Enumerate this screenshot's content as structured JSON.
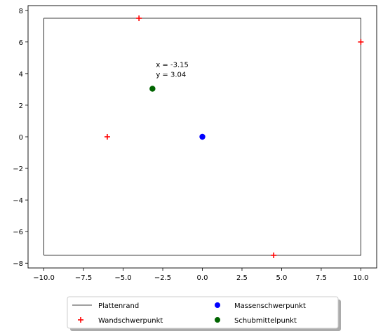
{
  "chart_data": {
    "type": "scatter",
    "title": "",
    "xlabel": "",
    "ylabel": "",
    "xlim": [
      -11,
      11
    ],
    "ylim": [
      -8.3,
      8.3
    ],
    "xticks": [
      -10.0,
      -7.5,
      -5.0,
      -2.5,
      0.0,
      2.5,
      5.0,
      7.5,
      10.0
    ],
    "xtick_labels": [
      "−10.0",
      "−7.5",
      "−5.0",
      "−2.5",
      "0.0",
      "2.5",
      "5.0",
      "7.5",
      "10.0"
    ],
    "yticks": [
      -8,
      -6,
      -4,
      -2,
      0,
      2,
      4,
      6,
      8
    ],
    "ytick_labels": [
      "−8",
      "−6",
      "−4",
      "−2",
      "0",
      "2",
      "4",
      "6",
      "8"
    ],
    "grid": false,
    "legend_position": "bottom-center",
    "series": [
      {
        "name": "Plattenrand",
        "kind": "line",
        "color": "#000000",
        "x": [
          -10,
          10,
          10,
          -10,
          -10
        ],
        "y": [
          -7.5,
          -7.5,
          7.5,
          7.5,
          -7.5
        ]
      },
      {
        "name": "Wandschwerpunkt",
        "kind": "plus",
        "color": "#ff0000",
        "x": [
          -4,
          10,
          -6,
          4.5
        ],
        "y": [
          7.5,
          6,
          0,
          -7.5
        ]
      },
      {
        "name": "Massenschwerpunkt",
        "kind": "circle",
        "color": "#0000ff",
        "x": [
          0
        ],
        "y": [
          0
        ]
      },
      {
        "name": "Schubmittelpunkt",
        "kind": "circle",
        "color": "#006400",
        "x": [
          -3.15
        ],
        "y": [
          3.04
        ]
      }
    ],
    "annotations": [
      {
        "lines": [
          "x = -3.15",
          "y = 3.04"
        ],
        "x": -3.15,
        "y": 3.04
      }
    ]
  }
}
